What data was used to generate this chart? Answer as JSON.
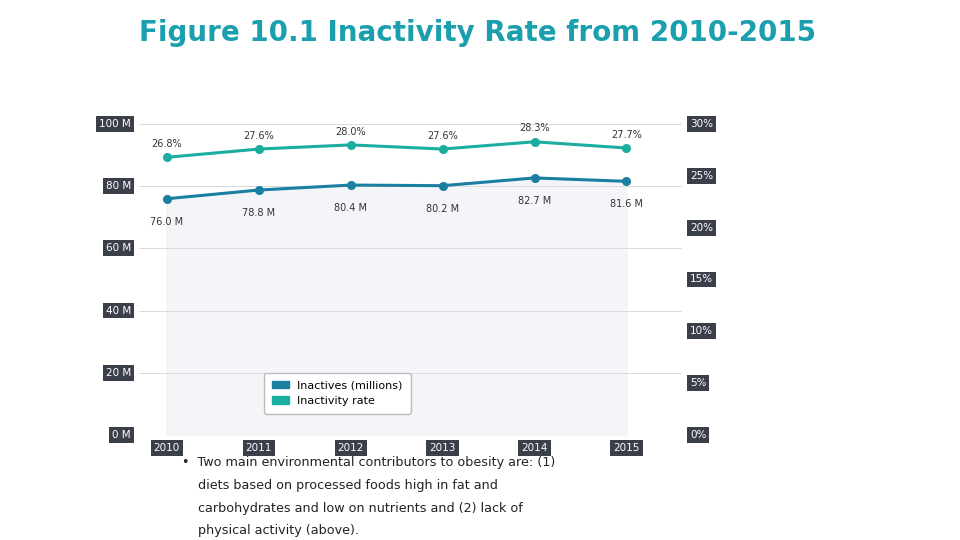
{
  "title": "Figure 10.1 Inactivity Rate from 2010-2015",
  "title_color": "#1a9fae",
  "title_fontsize": 20,
  "years": [
    2010,
    2011,
    2012,
    2013,
    2014,
    2015
  ],
  "inactives_millions": [
    76.0,
    78.8,
    80.4,
    80.2,
    82.7,
    81.6
  ],
  "inactivity_rate": [
    26.8,
    27.6,
    28.0,
    27.6,
    28.3,
    27.7
  ],
  "inactives_labels": [
    "76.0 M",
    "78.8 M",
    "80.4 M",
    "80.2 M",
    "82.7 M",
    "81.6 M"
  ],
  "rate_labels": [
    "26.8%",
    "27.6%",
    "28.0%",
    "27.6%",
    "28.3%",
    "27.7%"
  ],
  "line_color_inactives": "#1a7fa0",
  "line_color_rate": "#1aada0",
  "area_fill_color": "#dde0e8",
  "tick_label_bg": "#3a3f4a",
  "tick_label_color": "#ffffff",
  "legend_label_inactives": "Inactives (millions)",
  "legend_label_rate": "Inactivity rate",
  "ylim_left": [
    0,
    100
  ],
  "ylim_right": [
    0,
    30
  ],
  "ylabel_left_ticks": [
    0,
    20,
    40,
    60,
    80,
    100
  ],
  "ylabel_right_ticks": [
    0,
    5,
    10,
    15,
    20,
    25,
    30
  ],
  "ylabel_left_labels": [
    "0 M",
    "20 M",
    "40 M",
    "60 M",
    "80 M",
    "100 M"
  ],
  "ylabel_right_labels": [
    "0%",
    "5%",
    "10%",
    "15%",
    "20%",
    "25%",
    "30%"
  ],
  "bullet_line1": "•  Two main environmental contributors to obesity are: (1)",
  "bullet_line2": "    diets based on processed foods high in fat and",
  "bullet_line3": "    carbohydrates and low on nutrients and (2) lack of",
  "bullet_line4": "    physical activity (above).",
  "background_color": "#ffffff"
}
